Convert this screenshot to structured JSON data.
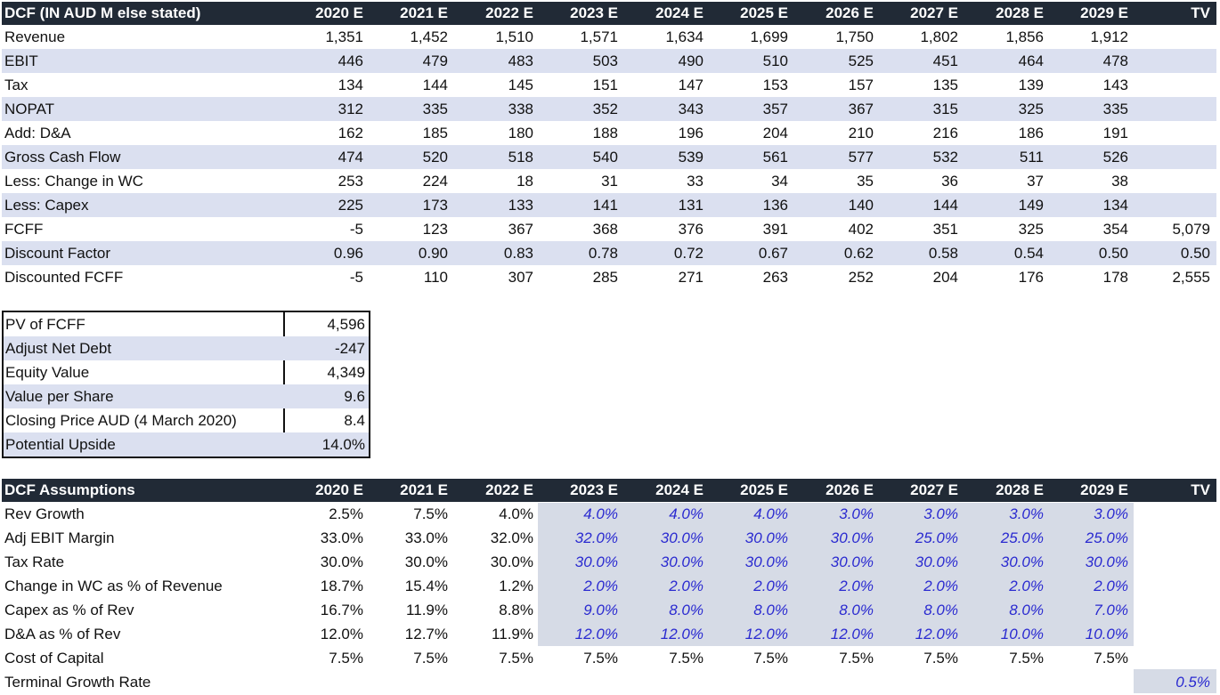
{
  "dcf": {
    "title": "DCF (IN AUD M else stated)",
    "columns": [
      "2020 E",
      "2021 E",
      "2022 E",
      "2023 E",
      "2024 E",
      "2025 E",
      "2026 E",
      "2027 E",
      "2028 E",
      "2029 E",
      "TV"
    ],
    "rows": [
      {
        "label": "Revenue",
        "values": [
          "1,351",
          "1,452",
          "1,510",
          "1,571",
          "1,634",
          "1,699",
          "1,750",
          "1,802",
          "1,856",
          "1,912",
          ""
        ]
      },
      {
        "label": "EBIT",
        "values": [
          "446",
          "479",
          "483",
          "503",
          "490",
          "510",
          "525",
          "451",
          "464",
          "478",
          ""
        ]
      },
      {
        "label": "Tax",
        "values": [
          "134",
          "144",
          "145",
          "151",
          "147",
          "153",
          "157",
          "135",
          "139",
          "143",
          ""
        ]
      },
      {
        "label": "NOPAT",
        "values": [
          "312",
          "335",
          "338",
          "352",
          "343",
          "357",
          "367",
          "315",
          "325",
          "335",
          ""
        ]
      },
      {
        "label": "Add: D&A",
        "values": [
          "162",
          "185",
          "180",
          "188",
          "196",
          "204",
          "210",
          "216",
          "186",
          "191",
          ""
        ]
      },
      {
        "label": "Gross Cash Flow",
        "values": [
          "474",
          "520",
          "518",
          "540",
          "539",
          "561",
          "577",
          "532",
          "511",
          "526",
          ""
        ]
      },
      {
        "label": "Less: Change in WC",
        "values": [
          "253",
          "224",
          "18",
          "31",
          "33",
          "34",
          "35",
          "36",
          "37",
          "38",
          ""
        ]
      },
      {
        "label": "Less: Capex",
        "values": [
          "225",
          "173",
          "133",
          "141",
          "131",
          "136",
          "140",
          "144",
          "149",
          "134",
          ""
        ]
      },
      {
        "label": "FCFF",
        "values": [
          "-5",
          "123",
          "367",
          "368",
          "376",
          "391",
          "402",
          "351",
          "325",
          "354",
          "5,079"
        ]
      },
      {
        "label": "Discount Factor",
        "values": [
          "0.96",
          "0.90",
          "0.83",
          "0.78",
          "0.72",
          "0.67",
          "0.62",
          "0.58",
          "0.54",
          "0.50",
          "0.50"
        ]
      },
      {
        "label": "Discounted FCFF",
        "values": [
          "-5",
          "110",
          "307",
          "285",
          "271",
          "263",
          "252",
          "204",
          "176",
          "178",
          "2,555"
        ]
      }
    ]
  },
  "summary": {
    "rows": [
      {
        "label": "PV of FCFF",
        "value": "4,596"
      },
      {
        "label": "Adjust Net Debt",
        "value": "-247"
      },
      {
        "label": "Equity Value",
        "value": "4,349"
      },
      {
        "label": "Value per Share",
        "value": "9.6"
      },
      {
        "label": "Closing Price AUD (4 March 2020)",
        "value": "8.4"
      },
      {
        "label": "Potential Upside",
        "value": "14.0%"
      }
    ]
  },
  "assumptions": {
    "title": "DCF Assumptions",
    "columns": [
      "2020 E",
      "2021 E",
      "2022 E",
      "2023 E",
      "2024 E",
      "2025 E",
      "2026 E",
      "2027 E",
      "2028 E",
      "2029 E",
      "TV"
    ],
    "rows": [
      {
        "label": "Rev Growth",
        "values": [
          "2.5%",
          "7.5%",
          "4.0%",
          "4.0%",
          "4.0%",
          "4.0%",
          "3.0%",
          "3.0%",
          "3.0%",
          "3.0%",
          ""
        ]
      },
      {
        "label": "Adj EBIT Margin",
        "values": [
          "33.0%",
          "33.0%",
          "32.0%",
          "32.0%",
          "30.0%",
          "30.0%",
          "30.0%",
          "25.0%",
          "25.0%",
          "25.0%",
          ""
        ]
      },
      {
        "label": "Tax Rate",
        "values": [
          "30.0%",
          "30.0%",
          "30.0%",
          "30.0%",
          "30.0%",
          "30.0%",
          "30.0%",
          "30.0%",
          "30.0%",
          "30.0%",
          ""
        ]
      },
      {
        "label": "Change in WC as % of Revenue",
        "values": [
          "18.7%",
          "15.4%",
          "1.2%",
          "2.0%",
          "2.0%",
          "2.0%",
          "2.0%",
          "2.0%",
          "2.0%",
          "2.0%",
          ""
        ]
      },
      {
        "label": "Capex as % of Rev",
        "values": [
          "16.7%",
          "11.9%",
          "8.8%",
          "9.0%",
          "8.0%",
          "8.0%",
          "8.0%",
          "8.0%",
          "8.0%",
          "7.0%",
          ""
        ]
      },
      {
        "label": "D&A as % of Rev",
        "values": [
          "12.0%",
          "12.7%",
          "11.9%",
          "12.0%",
          "12.0%",
          "12.0%",
          "12.0%",
          "12.0%",
          "10.0%",
          "10.0%",
          ""
        ]
      },
      {
        "label": "Cost of Capital",
        "values": [
          "7.5%",
          "7.5%",
          "7.5%",
          "7.5%",
          "7.5%",
          "7.5%",
          "7.5%",
          "7.5%",
          "7.5%",
          "7.5%",
          ""
        ]
      },
      {
        "label": "Terminal Growth Rate",
        "values": [
          "",
          "",
          "",
          "",
          "",
          "",
          "",
          "",
          "",
          "",
          "0.5%"
        ]
      }
    ]
  }
}
